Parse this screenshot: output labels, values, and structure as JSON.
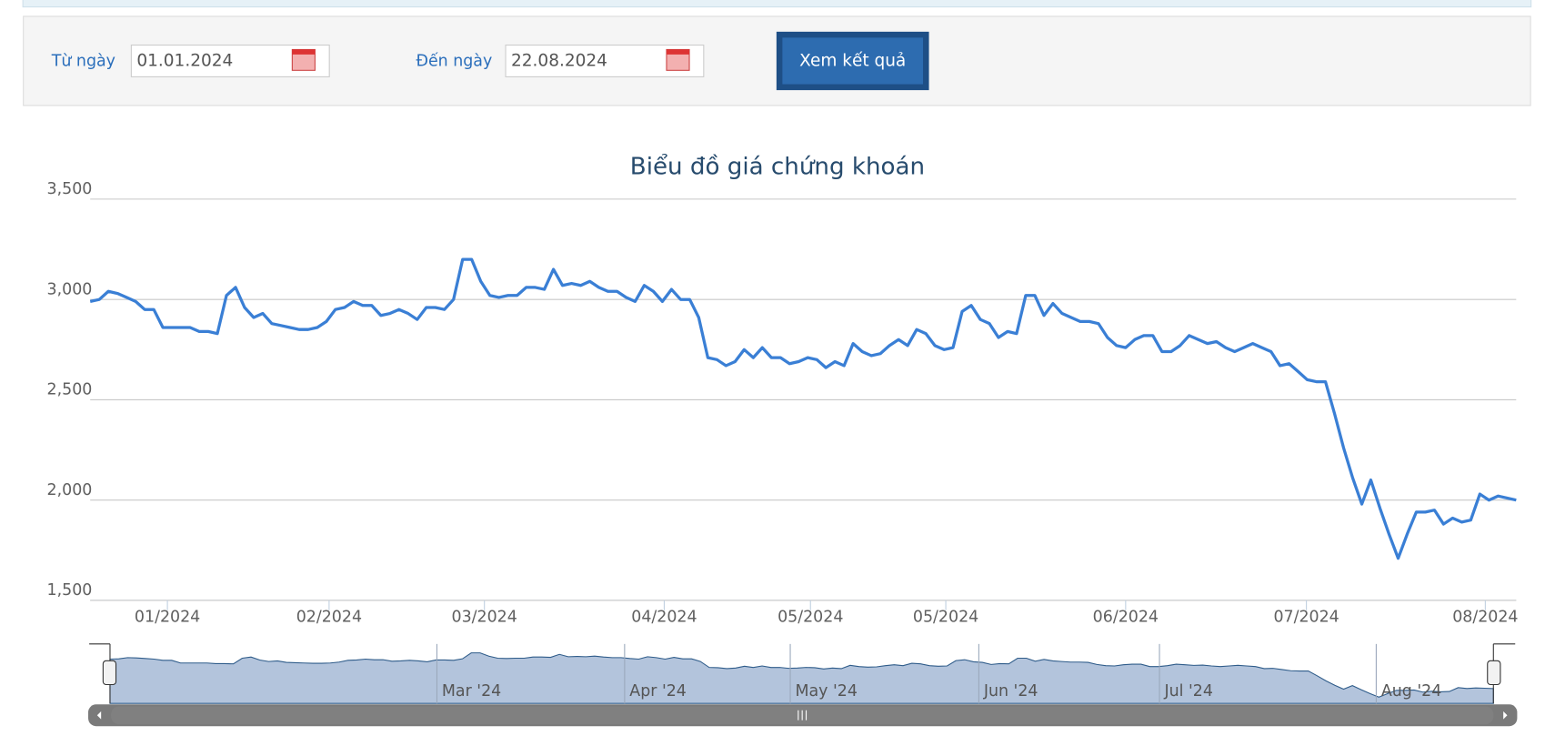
{
  "form": {
    "from_label": "Từ ngày",
    "from_value": "01.01.2024",
    "to_label": "Đến ngày",
    "to_value": "22.08.2024",
    "button": "Xem kết quả"
  },
  "chart_data": {
    "type": "line",
    "title": "Biểu đồ giá chứng khoán",
    "color": "#3a7fd5",
    "grid": true,
    "values": [
      2990,
      3000,
      3040,
      3030,
      3010,
      2990,
      2950,
      2950,
      2860,
      2860,
      2860,
      2860,
      2840,
      2840,
      2830,
      3020,
      3060,
      2960,
      2910,
      2930,
      2880,
      2870,
      2860,
      2850,
      2850,
      2860,
      2890,
      2950,
      2960,
      2990,
      2970,
      2970,
      2920,
      2930,
      2950,
      2930,
      2900,
      2960,
      2960,
      2950,
      3000,
      3200,
      3200,
      3090,
      3020,
      3010,
      3020,
      3020,
      3060,
      3060,
      3050,
      3150,
      3070,
      3080,
      3070,
      3090,
      3060,
      3040,
      3040,
      3010,
      2990,
      3070,
      3040,
      2990,
      3050,
      3000,
      3000,
      2910,
      2710,
      2700,
      2670,
      2690,
      2750,
      2710,
      2760,
      2710,
      2710,
      2680,
      2690,
      2710,
      2700,
      2660,
      2690,
      2670,
      2780,
      2740,
      2720,
      2730,
      2770,
      2800,
      2770,
      2850,
      2830,
      2770,
      2750,
      2760,
      2940,
      2970,
      2900,
      2880,
      2810,
      2840,
      2830,
      3020,
      3020,
      2920,
      2980,
      2930,
      2910,
      2890,
      2890,
      2880,
      2810,
      2770,
      2760,
      2800,
      2820,
      2820,
      2740,
      2740,
      2770,
      2820,
      2800,
      2780,
      2790,
      2760,
      2740,
      2760,
      2780,
      2760,
      2740,
      2670,
      2680,
      2640,
      2600,
      2590,
      2590,
      2430,
      2260,
      2110,
      1980,
      2100,
      1960,
      1830,
      1710,
      1830,
      1940,
      1940,
      1950,
      1880,
      1910,
      1890,
      1900,
      2030,
      2000,
      2020,
      2010,
      2000
    ],
    "ylim": [
      1500,
      3500
    ],
    "yticks": [
      {
        "value": 1500,
        "label": "1,500"
      },
      {
        "value": 2000,
        "label": "2,000"
      },
      {
        "value": 2500,
        "label": "2,500"
      },
      {
        "value": 3000,
        "label": "3,000"
      },
      {
        "value": 3500,
        "label": "3,500"
      }
    ],
    "xticks": [
      {
        "value": 8.5,
        "label": "01/2024"
      },
      {
        "value": 26.3,
        "label": "02/2024"
      },
      {
        "value": 43.4,
        "label": "03/2024"
      },
      {
        "value": 63.2,
        "label": "04/2024"
      },
      {
        "value": 79.3,
        "label": "05/2024"
      },
      {
        "value": 94.2,
        "label": "05/2024"
      },
      {
        "value": 114,
        "label": "06/2024"
      },
      {
        "value": 133.9,
        "label": "07/2024"
      },
      {
        "value": 153.6,
        "label": "08/2024"
      }
    ],
    "navigator_ticks": [
      {
        "value": 37.1,
        "label": "Mar '24"
      },
      {
        "value": 58.4,
        "label": "Apr '24"
      },
      {
        "value": 77.2,
        "label": "May '24"
      },
      {
        "value": 98.6,
        "label": "Jun '24"
      },
      {
        "value": 119.1,
        "label": "Jul '24"
      },
      {
        "value": 143.7,
        "label": "Aug '24"
      }
    ]
  }
}
